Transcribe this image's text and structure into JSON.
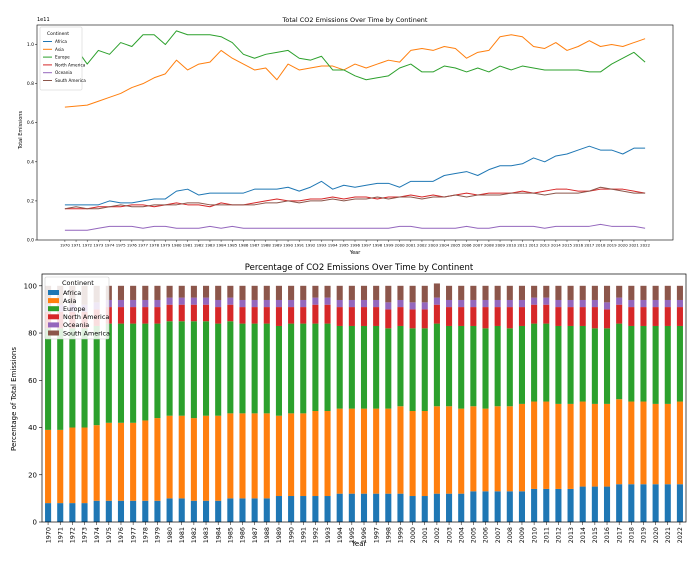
{
  "colors": {
    "Africa": "#1f77b4",
    "Asia": "#ff7f0e",
    "Europe": "#2ca02c",
    "North America": "#d62728",
    "Oceania": "#9467bd",
    "South America": "#8c564b"
  },
  "chart_data": [
    {
      "type": "line",
      "title": "Total CO2 Emissions Over Time by Continent",
      "xlabel": "Year",
      "ylabel": "Total Emissions",
      "y_offset_label": "1e11",
      "ylim": [
        0.0,
        1.1
      ],
      "yticks": [
        0.0,
        0.2,
        0.4,
        0.6,
        0.8,
        1.0
      ],
      "legend_title": "Continent",
      "legend_position": "upper-left",
      "x": [
        1970,
        1971,
        1972,
        1973,
        1974,
        1975,
        1976,
        1977,
        1978,
        1979,
        1980,
        1981,
        1982,
        1983,
        1984,
        1985,
        1986,
        1987,
        1988,
        1989,
        1990,
        1991,
        1992,
        1993,
        1994,
        1995,
        1996,
        1997,
        1998,
        1999,
        2000,
        2001,
        2002,
        2003,
        2004,
        2005,
        2006,
        2007,
        2008,
        2009,
        2010,
        2011,
        2012,
        2013,
        2014,
        2015,
        2016,
        2017,
        2018,
        2019,
        2020,
        2021,
        2022
      ],
      "series": [
        {
          "name": "Africa",
          "values": [
            0.18,
            0.18,
            0.18,
            0.18,
            0.2,
            0.19,
            0.19,
            0.2,
            0.21,
            0.21,
            0.25,
            0.26,
            0.23,
            0.24,
            0.24,
            0.24,
            0.24,
            0.26,
            0.26,
            0.26,
            0.27,
            0.25,
            0.27,
            0.3,
            0.26,
            0.28,
            0.27,
            0.28,
            0.29,
            0.29,
            0.27,
            0.3,
            0.3,
            0.3,
            0.33,
            0.34,
            0.35,
            0.33,
            0.36,
            0.38,
            0.38,
            0.39,
            0.42,
            0.4,
            0.43,
            0.44,
            0.46,
            0.48,
            0.46,
            0.46,
            0.44,
            0.47,
            0.47
          ]
        },
        {
          "name": "Asia",
          "values": [
            0.68,
            0.685,
            0.69,
            0.71,
            0.73,
            0.75,
            0.78,
            0.8,
            0.83,
            0.85,
            0.92,
            0.87,
            0.9,
            0.91,
            0.97,
            0.93,
            0.9,
            0.87,
            0.88,
            0.82,
            0.9,
            0.87,
            0.88,
            0.89,
            0.89,
            0.87,
            0.9,
            0.88,
            0.9,
            0.92,
            0.91,
            0.97,
            0.98,
            0.97,
            0.99,
            0.98,
            0.93,
            0.96,
            0.97,
            1.04,
            1.05,
            1.04,
            0.99,
            0.98,
            1.01,
            0.97,
            0.99,
            1.02,
            0.99,
            1.0,
            0.99,
            1.01,
            1.03
          ]
        },
        {
          "name": "Europe",
          "values": [
            0.97,
            0.98,
            0.9,
            0.97,
            0.95,
            1.01,
            0.99,
            1.05,
            1.05,
            1.0,
            1.07,
            1.05,
            1.05,
            1.05,
            1.04,
            1.01,
            0.95,
            0.93,
            0.95,
            0.96,
            0.97,
            0.93,
            0.92,
            0.94,
            0.87,
            0.87,
            0.84,
            0.82,
            0.83,
            0.84,
            0.88,
            0.9,
            0.86,
            0.86,
            0.89,
            0.88,
            0.86,
            0.88,
            0.86,
            0.89,
            0.87,
            0.89,
            0.88,
            0.87,
            0.87,
            0.87,
            0.87,
            0.86,
            0.86,
            0.9,
            0.93,
            0.96,
            0.91
          ]
        },
        {
          "name": "North America",
          "values": [
            0.16,
            0.16,
            0.16,
            0.17,
            0.17,
            0.17,
            0.18,
            0.18,
            0.17,
            0.18,
            0.19,
            0.18,
            0.18,
            0.17,
            0.19,
            0.18,
            0.18,
            0.19,
            0.2,
            0.21,
            0.2,
            0.2,
            0.21,
            0.21,
            0.22,
            0.21,
            0.22,
            0.22,
            0.21,
            0.22,
            0.22,
            0.23,
            0.22,
            0.23,
            0.22,
            0.23,
            0.24,
            0.23,
            0.24,
            0.24,
            0.24,
            0.25,
            0.24,
            0.25,
            0.26,
            0.26,
            0.25,
            0.25,
            0.26,
            0.26,
            0.26,
            0.25,
            0.24
          ]
        },
        {
          "name": "Oceania",
          "values": [
            0.05,
            0.05,
            0.05,
            0.06,
            0.07,
            0.07,
            0.07,
            0.06,
            0.07,
            0.07,
            0.06,
            0.06,
            0.06,
            0.07,
            0.06,
            0.07,
            0.06,
            0.06,
            0.06,
            0.06,
            0.06,
            0.06,
            0.06,
            0.06,
            0.06,
            0.06,
            0.06,
            0.06,
            0.06,
            0.06,
            0.07,
            0.07,
            0.06,
            0.06,
            0.06,
            0.06,
            0.07,
            0.06,
            0.06,
            0.07,
            0.07,
            0.07,
            0.07,
            0.06,
            0.07,
            0.07,
            0.07,
            0.07,
            0.08,
            0.07,
            0.07,
            0.07,
            0.06
          ]
        },
        {
          "name": "South America",
          "values": [
            0.16,
            0.17,
            0.16,
            0.16,
            0.17,
            0.18,
            0.17,
            0.17,
            0.18,
            0.18,
            0.18,
            0.19,
            0.19,
            0.18,
            0.18,
            0.18,
            0.18,
            0.18,
            0.19,
            0.19,
            0.2,
            0.19,
            0.2,
            0.2,
            0.21,
            0.2,
            0.21,
            0.21,
            0.22,
            0.21,
            0.22,
            0.22,
            0.21,
            0.22,
            0.22,
            0.23,
            0.22,
            0.23,
            0.23,
            0.23,
            0.24,
            0.24,
            0.24,
            0.23,
            0.24,
            0.24,
            0.24,
            0.25,
            0.27,
            0.26,
            0.25,
            0.24,
            0.24
          ]
        }
      ]
    },
    {
      "type": "bar",
      "stacked": true,
      "title": "Percentage of CO2 Emissions Over Time by Continent",
      "xlabel": "Year",
      "ylabel": "Percentage of Total Emissions",
      "ylim": [
        0,
        105
      ],
      "yticks": [
        0,
        20,
        40,
        60,
        80,
        100
      ],
      "legend_title": "Continent",
      "legend_position": "upper-left",
      "categories": [
        "1970",
        "1971",
        "1972",
        "1973",
        "1974",
        "1975",
        "1976",
        "1977",
        "1978",
        "1979",
        "1980",
        "1981",
        "1982",
        "1983",
        "1984",
        "1985",
        "1986",
        "1987",
        "1988",
        "1989",
        "1990",
        "1991",
        "1992",
        "1993",
        "1994",
        "1995",
        "1996",
        "1997",
        "1998",
        "1999",
        "2000",
        "2001",
        "2002",
        "2003",
        "2004",
        "2005",
        "2006",
        "2007",
        "2008",
        "2009",
        "2010",
        "2011",
        "2012",
        "2013",
        "2014",
        "2015",
        "2016",
        "2017",
        "2018",
        "2019",
        "2020",
        "2021",
        "2022"
      ],
      "series": [
        {
          "name": "Africa",
          "values": [
            8,
            8,
            8,
            8,
            9,
            9,
            9,
            9,
            9,
            9,
            10,
            10,
            9,
            9,
            9,
            10,
            10,
            10,
            10,
            11,
            11,
            11,
            11,
            11,
            12,
            12,
            12,
            12,
            12,
            12,
            11,
            11,
            12,
            12,
            12,
            13,
            13,
            13,
            13,
            13,
            14,
            14,
            14,
            14,
            15,
            15,
            15,
            16,
            16,
            16,
            16,
            16,
            16
          ]
        },
        {
          "name": "Asia",
          "values": [
            31,
            31,
            32,
            32,
            32,
            33,
            33,
            33,
            34,
            35,
            35,
            35,
            35,
            36,
            36,
            36,
            36,
            36,
            36,
            34,
            35,
            35,
            36,
            36,
            36,
            36,
            36,
            36,
            36,
            37,
            36,
            36,
            37,
            37,
            36,
            36,
            35,
            36,
            36,
            37,
            37,
            37,
            36,
            36,
            36,
            35,
            35,
            36,
            35,
            35,
            34,
            34,
            35
          ]
        },
        {
          "name": "Europe",
          "values": [
            43,
            43,
            42,
            42,
            42,
            42,
            42,
            42,
            41,
            40,
            40,
            40,
            41,
            40,
            39,
            39,
            38,
            38,
            38,
            38,
            38,
            38,
            37,
            37,
            35,
            35,
            35,
            35,
            34,
            34,
            35,
            35,
            35,
            34,
            35,
            34,
            34,
            34,
            33,
            33,
            33,
            33,
            33,
            33,
            32,
            32,
            32,
            32,
            32,
            32,
            33,
            33,
            32
          ]
        },
        {
          "name": "North America",
          "values": [
            7,
            7,
            7,
            7,
            7,
            7,
            7,
            7,
            7,
            7,
            7,
            7,
            7,
            7,
            7,
            7,
            7,
            7,
            7,
            8,
            7,
            7,
            8,
            8,
            8,
            8,
            8,
            8,
            8,
            8,
            8,
            8,
            8,
            8,
            8,
            8,
            9,
            8,
            9,
            8,
            8,
            8,
            8,
            8,
            8,
            9,
            8,
            8,
            8,
            8,
            8,
            8,
            8
          ]
        },
        {
          "name": "Oceania",
          "values": [
            3,
            3,
            3,
            3,
            3,
            3,
            3,
            3,
            3,
            3,
            3,
            3,
            3,
            3,
            3,
            3,
            3,
            3,
            3,
            3,
            3,
            3,
            3,
            3,
            3,
            3,
            3,
            3,
            3,
            3,
            3,
            3,
            3,
            3,
            3,
            3,
            3,
            3,
            3,
            3,
            3,
            3,
            3,
            3,
            3,
            3,
            3,
            3,
            3,
            3,
            3,
            3,
            3
          ]
        },
        {
          "name": "South America",
          "values": [
            8,
            8,
            8,
            8,
            7,
            6,
            6,
            6,
            6,
            6,
            5,
            5,
            5,
            5,
            6,
            5,
            6,
            6,
            6,
            6,
            6,
            6,
            5,
            5,
            6,
            6,
            6,
            6,
            7,
            6,
            7,
            7,
            6,
            6,
            6,
            6,
            6,
            6,
            6,
            6,
            5,
            5,
            6,
            6,
            6,
            6,
            7,
            5,
            6,
            6,
            6,
            6,
            6
          ]
        }
      ]
    }
  ]
}
